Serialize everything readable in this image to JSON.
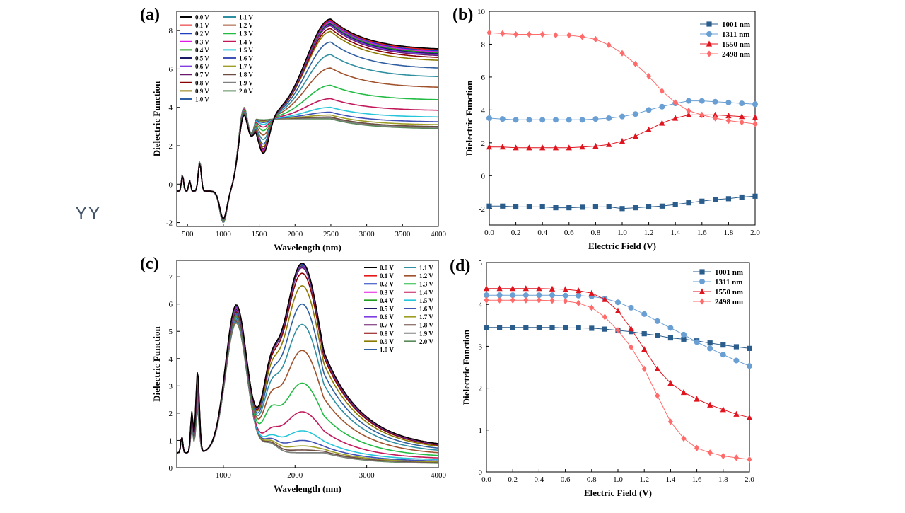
{
  "side_label": "YY",
  "palettes": {
    "voltage": [
      "#000000",
      "#e41a1c",
      "#1f3fbf",
      "#e31ae3",
      "#1f9e1f",
      "#1a1a66",
      "#7f3fe0",
      "#6b1a6b",
      "#8b0000",
      "#8b7a00",
      "#2f5fa0",
      "#2f8fa0",
      "#a0522d",
      "#22bb44",
      "#c2185b",
      "#26c6da",
      "#3f51b5",
      "#9e9d24",
      "#6d4c41",
      "#808080",
      "#5a8a5a"
    ],
    "wavelength": {
      "1001 nm": "#2b5d8c",
      "1311 nm": "#6a9fd4",
      "1550 nm": "#e0141e",
      "2498 nm": "#ff6b6b"
    }
  },
  "chart_data": [
    {
      "id": "a",
      "panel_label": "(a)",
      "type": "line",
      "xlabel": "Wavelength (nm)",
      "ylabel": "Dielectric Function",
      "xlim": [
        350,
        4000
      ],
      "ylim": [
        -2.2,
        9
      ],
      "xticks": [
        500,
        1000,
        1500,
        2000,
        2500,
        3000,
        3500,
        4000
      ],
      "yticks": [
        -2,
        0,
        2,
        4,
        6,
        8
      ],
      "legend": {
        "position": "top-left",
        "columns": 2,
        "entries": [
          "0.0 V",
          "0.1 V",
          "0.2 V",
          "0.3 V",
          "0.4 V",
          "0.5 V",
          "0.6 V",
          "0.7 V",
          "0.8 V",
          "0.9 V",
          "1.0 V",
          "1.1 V",
          "1.2 V",
          "1.3 V",
          "1.4 V",
          "1.5 V",
          "1.6 V",
          "1.7 V",
          "1.8 V",
          "1.9 V",
          "2.0 V"
        ]
      },
      "peak_values_at_2500nm": [
        8.6,
        8.55,
        8.5,
        8.45,
        8.4,
        8.35,
        8.3,
        8.25,
        8.1,
        7.95,
        7.4,
        6.75,
        6.05,
        5.15,
        4.45,
        4.0,
        3.75,
        3.6,
        3.5,
        3.45,
        3.4
      ],
      "tail_values_at_4000nm": [
        7.05,
        7.0,
        6.95,
        6.9,
        6.85,
        6.8,
        6.75,
        6.7,
        6.6,
        6.45,
        6.05,
        5.6,
        5.05,
        4.4,
        3.85,
        3.5,
        3.25,
        3.1,
        3.0,
        2.95,
        2.9
      ],
      "dip_values_at_1550nm": [
        1.6,
        1.65,
        1.65,
        1.7,
        1.7,
        1.7,
        1.75,
        1.8,
        1.85,
        1.95,
        2.1,
        2.35,
        2.6,
        2.85,
        3.05,
        3.2,
        3.3,
        3.35,
        3.4,
        3.4,
        3.45
      ]
    },
    {
      "id": "b",
      "panel_label": "(b)",
      "type": "line",
      "xlabel": "Electric Field (V)",
      "ylabel": "Dielectric Function",
      "xlim": [
        0,
        2
      ],
      "ylim": [
        -3,
        10
      ],
      "xticks": [
        0,
        0.2,
        0.4,
        0.6,
        0.8,
        1.0,
        1.2,
        1.4,
        1.6,
        1.8,
        2.0
      ],
      "yticks": [
        -2,
        0,
        2,
        4,
        6,
        8,
        10
      ],
      "legend": {
        "position": "top-right"
      },
      "x": [
        0,
        0.1,
        0.2,
        0.3,
        0.4,
        0.5,
        0.6,
        0.7,
        0.8,
        0.9,
        1.0,
        1.1,
        1.2,
        1.3,
        1.4,
        1.5,
        1.6,
        1.7,
        1.8,
        1.9,
        2.0
      ],
      "series": [
        {
          "name": "1001 nm",
          "marker": "square",
          "values": [
            -1.85,
            -1.85,
            -1.9,
            -1.9,
            -1.9,
            -1.95,
            -1.95,
            -1.92,
            -1.9,
            -1.9,
            -2.0,
            -1.95,
            -1.9,
            -1.85,
            -1.75,
            -1.65,
            -1.55,
            -1.45,
            -1.4,
            -1.3,
            -1.25
          ]
        },
        {
          "name": "1311 nm",
          "marker": "circle",
          "values": [
            3.5,
            3.45,
            3.4,
            3.4,
            3.4,
            3.4,
            3.4,
            3.4,
            3.45,
            3.5,
            3.6,
            3.75,
            4.0,
            4.2,
            4.4,
            4.55,
            4.55,
            4.5,
            4.45,
            4.4,
            4.35
          ]
        },
        {
          "name": "1550 nm",
          "marker": "triangle",
          "values": [
            1.75,
            1.75,
            1.7,
            1.7,
            1.7,
            1.7,
            1.7,
            1.75,
            1.8,
            1.9,
            2.1,
            2.4,
            2.8,
            3.2,
            3.5,
            3.7,
            3.7,
            3.7,
            3.65,
            3.6,
            3.55
          ]
        },
        {
          "name": "2498 nm",
          "marker": "diamond",
          "values": [
            8.7,
            8.65,
            8.6,
            8.6,
            8.6,
            8.55,
            8.55,
            8.45,
            8.3,
            7.95,
            7.45,
            6.8,
            6.05,
            5.15,
            4.45,
            3.95,
            3.7,
            3.5,
            3.35,
            3.25,
            3.15
          ]
        }
      ]
    },
    {
      "id": "c",
      "panel_label": "(c)",
      "type": "line",
      "xlabel": "Wavelength (nm)",
      "ylabel": "Dielectric Function",
      "xlim": [
        350,
        4000
      ],
      "ylim": [
        0,
        7.6
      ],
      "xticks": [
        1000,
        2000,
        3000,
        4000
      ],
      "yticks": [
        0,
        1,
        2,
        3,
        4,
        5,
        6,
        7
      ],
      "legend": {
        "position": "top-right",
        "columns": 2,
        "entries": [
          "0.0 V",
          "0.1 V",
          "0.2 V",
          "0.3 V",
          "0.4 V",
          "0.5 V",
          "0.6 V",
          "0.7 V",
          "0.8 V",
          "0.9 V",
          "1.0 V",
          "1.1 V",
          "1.2 V",
          "1.3 V",
          "1.4 V",
          "1.5 V",
          "1.6 V",
          "1.7 V",
          "1.8 V",
          "1.9 V",
          "2.0 V"
        ]
      },
      "peak_values_at_2100nm": [
        7.45,
        7.45,
        7.42,
        7.4,
        7.38,
        7.36,
        7.33,
        7.28,
        7.08,
        6.62,
        5.95,
        5.2,
        4.25,
        3.05,
        2.0,
        1.3,
        0.95,
        0.75,
        0.6,
        0.5,
        0.45
      ],
      "tail_values_at_4000nm": [
        0.88,
        0.88,
        0.88,
        0.87,
        0.87,
        0.86,
        0.86,
        0.85,
        0.83,
        0.79,
        0.72,
        0.64,
        0.55,
        0.45,
        0.36,
        0.3,
        0.25,
        0.22,
        0.2,
        0.18,
        0.16
      ]
    },
    {
      "id": "d",
      "panel_label": "(d)",
      "type": "line",
      "xlabel": "Electric Field (V)",
      "ylabel": "Dielectric Function",
      "xlim": [
        0,
        2
      ],
      "ylim": [
        0,
        5
      ],
      "xticks": [
        0,
        0.2,
        0.4,
        0.6,
        0.8,
        1.0,
        1.2,
        1.4,
        1.6,
        1.8,
        2.0
      ],
      "yticks": [
        0,
        1,
        2,
        3,
        4,
        5
      ],
      "legend": {
        "position": "top-right"
      },
      "x": [
        0,
        0.1,
        0.2,
        0.3,
        0.4,
        0.5,
        0.6,
        0.7,
        0.8,
        0.9,
        1.0,
        1.1,
        1.2,
        1.3,
        1.4,
        1.5,
        1.6,
        1.7,
        1.8,
        1.9,
        2.0
      ],
      "series": [
        {
          "name": "1001 nm",
          "marker": "square",
          "values": [
            3.45,
            3.45,
            3.45,
            3.45,
            3.45,
            3.45,
            3.44,
            3.44,
            3.43,
            3.41,
            3.38,
            3.35,
            3.3,
            3.26,
            3.2,
            3.17,
            3.13,
            3.08,
            3.03,
            2.99,
            2.95
          ]
        },
        {
          "name": "1311 nm",
          "marker": "circle",
          "values": [
            4.22,
            4.22,
            4.22,
            4.22,
            4.22,
            4.22,
            4.21,
            4.21,
            4.19,
            4.14,
            4.05,
            3.92,
            3.77,
            3.6,
            3.44,
            3.28,
            3.1,
            2.95,
            2.8,
            2.66,
            2.53
          ]
        },
        {
          "name": "1550 nm",
          "marker": "triangle",
          "values": [
            4.38,
            4.38,
            4.38,
            4.38,
            4.38,
            4.37,
            4.36,
            4.33,
            4.27,
            4.12,
            3.85,
            3.42,
            2.93,
            2.46,
            2.12,
            1.9,
            1.74,
            1.6,
            1.49,
            1.38,
            1.3
          ]
        },
        {
          "name": "2498 nm",
          "marker": "diamond",
          "values": [
            4.1,
            4.1,
            4.1,
            4.1,
            4.1,
            4.09,
            4.08,
            4.03,
            3.92,
            3.7,
            3.38,
            2.98,
            2.46,
            1.82,
            1.2,
            0.8,
            0.57,
            0.46,
            0.38,
            0.34,
            0.3
          ]
        }
      ]
    }
  ]
}
